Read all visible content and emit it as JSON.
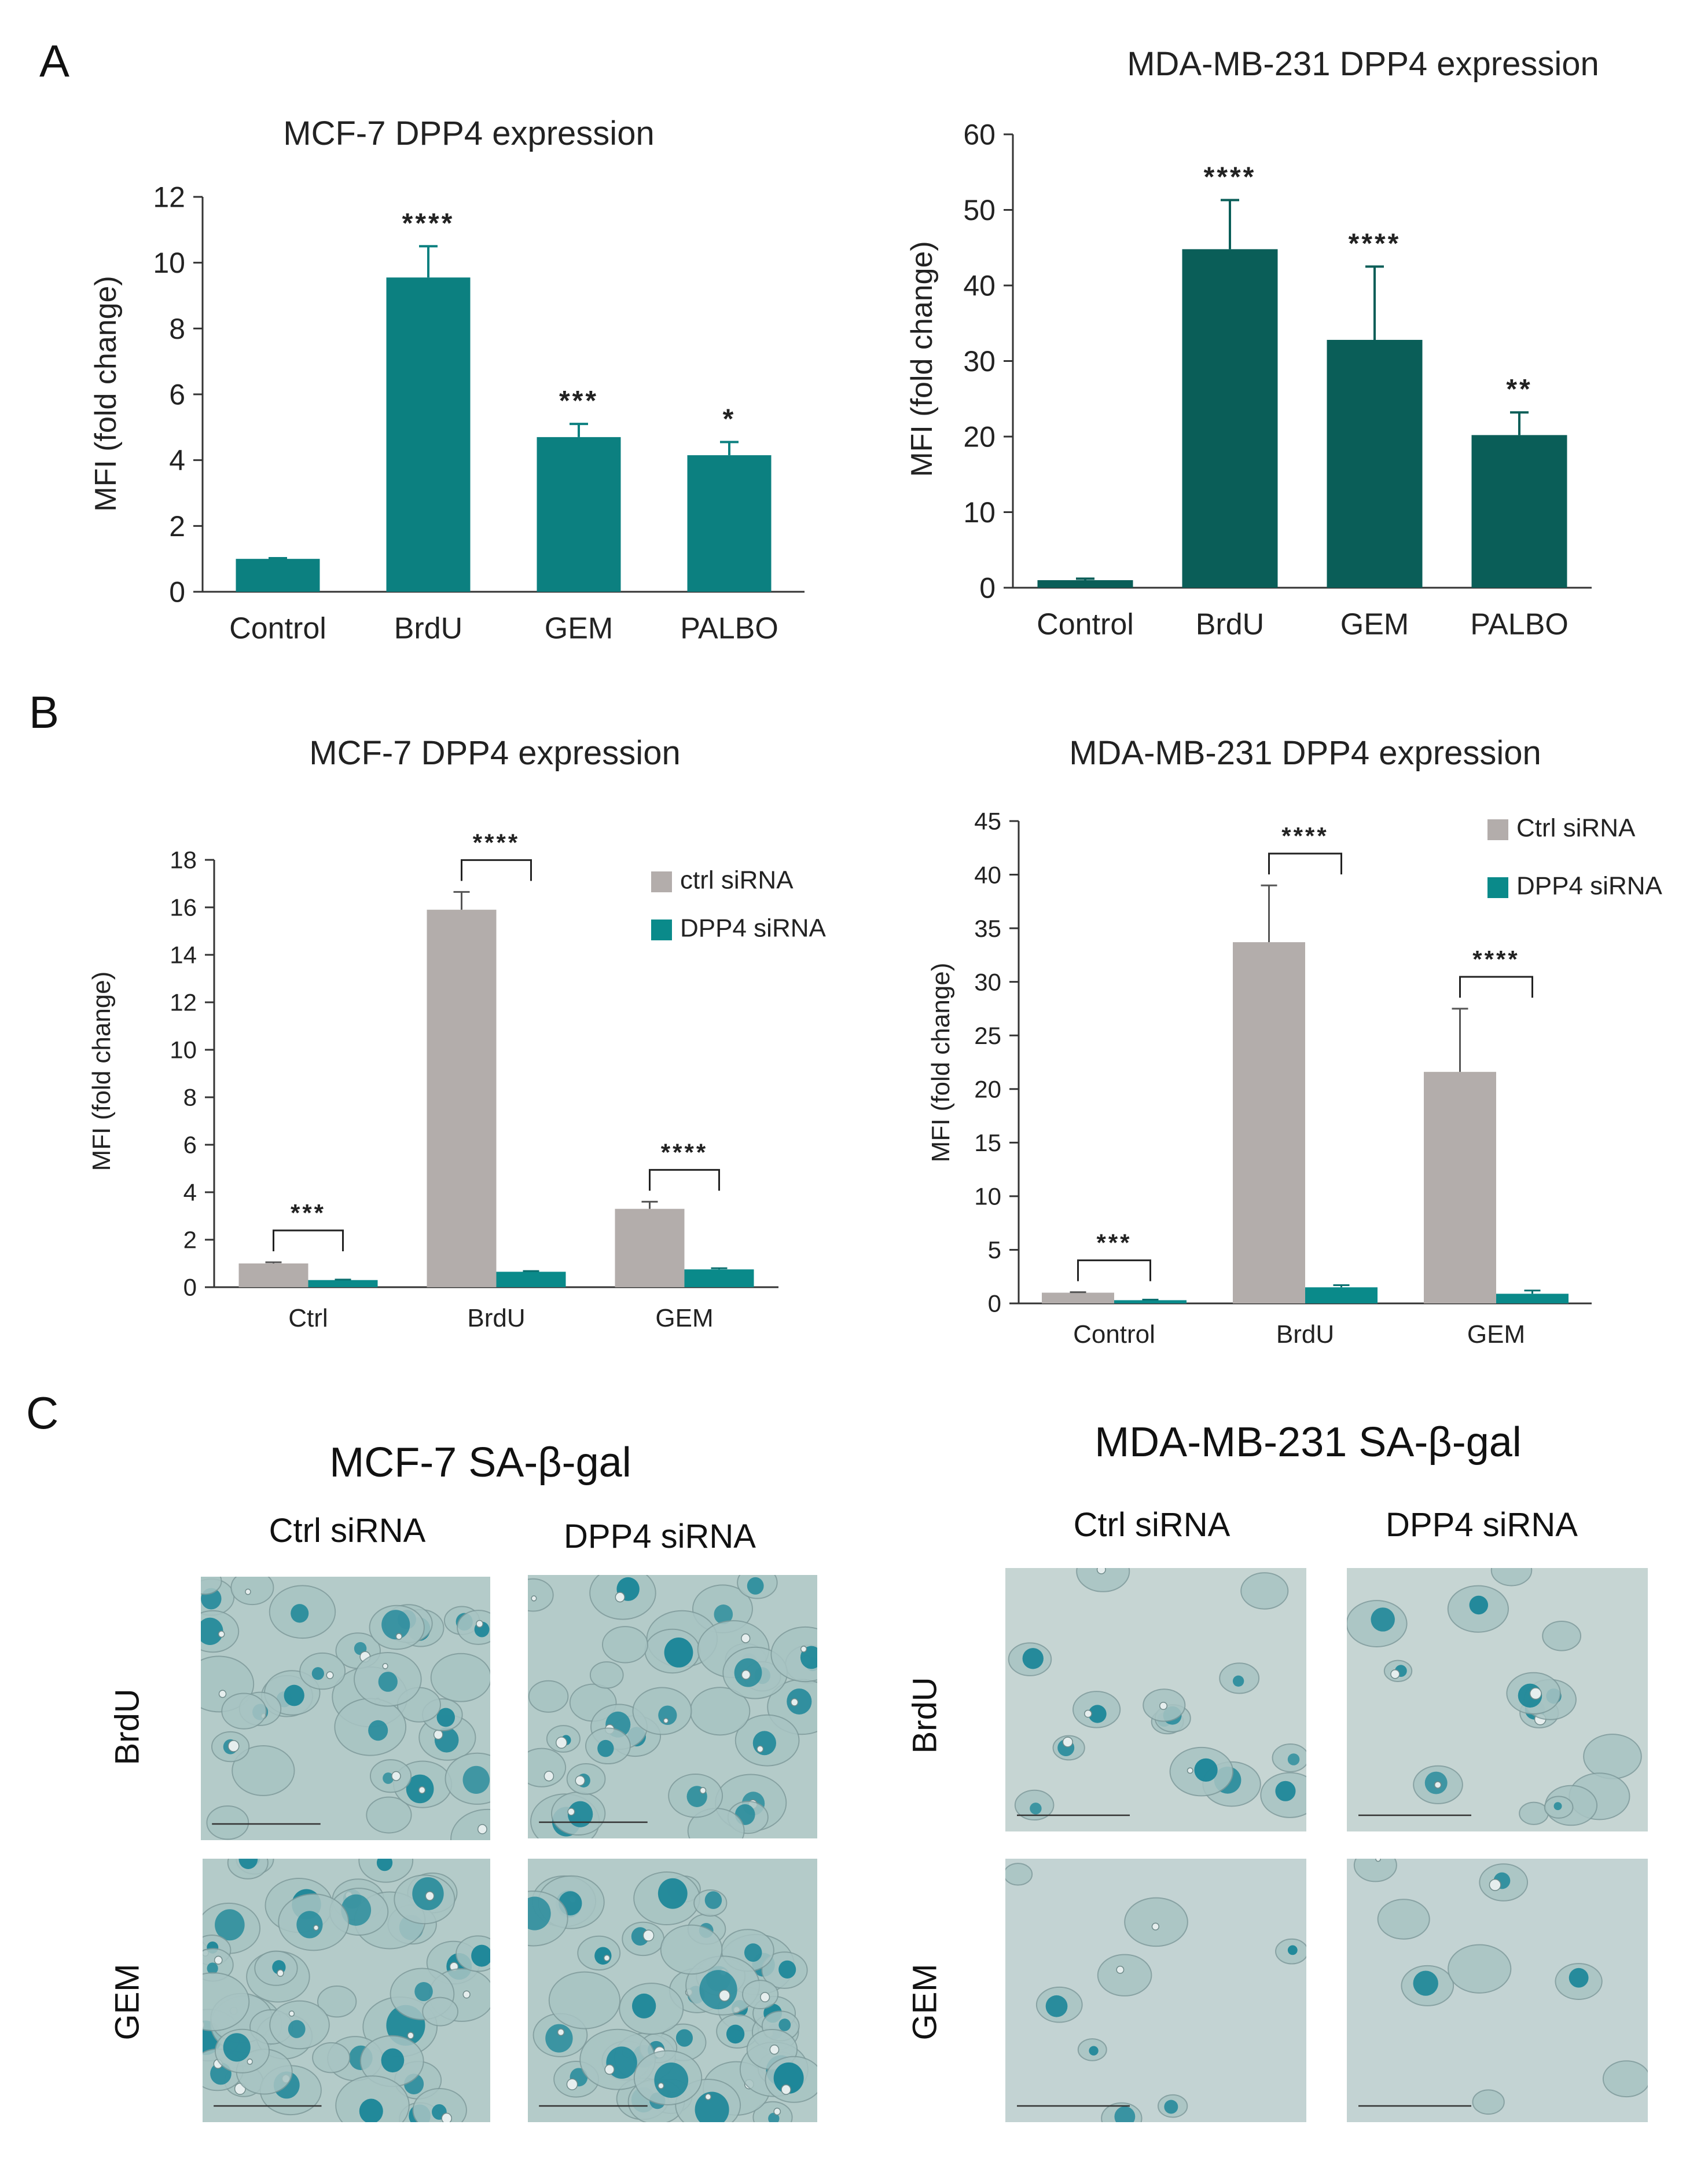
{
  "panels": {
    "a": "A",
    "b": "B",
    "c": "C"
  },
  "chart_data": [
    {
      "id": "A1",
      "type": "bar",
      "title": "MCF-7 DPP4 expression",
      "xlabel": "",
      "ylabel": "MFI (fold change)",
      "categories": [
        "Control",
        "BrdU",
        "GEM",
        "PALBO"
      ],
      "values": [
        1.0,
        9.55,
        4.7,
        4.15
      ],
      "errors": [
        0.02,
        0.95,
        0.4,
        0.4
      ],
      "significance": [
        "",
        "****",
        "***",
        "*"
      ],
      "ylim": [
        0,
        12
      ],
      "yticks": [
        0,
        2,
        4,
        6,
        8,
        10,
        12
      ],
      "color": "#0c8080"
    },
    {
      "id": "A2",
      "type": "bar",
      "title": "MDA-MB-231 DPP4 expression",
      "xlabel": "",
      "ylabel": "MFI  (fold change)",
      "categories": [
        "Control",
        "BrdU",
        "GEM",
        "PALBO"
      ],
      "values": [
        1.0,
        44.8,
        32.8,
        20.2
      ],
      "errors": [
        0.2,
        6.5,
        9.7,
        3.0
      ],
      "significance": [
        "",
        "****",
        "****",
        "**"
      ],
      "ylim": [
        0,
        60
      ],
      "yticks": [
        0,
        10,
        20,
        30,
        40,
        50,
        60
      ],
      "color": "#0a5e58"
    },
    {
      "id": "B1",
      "type": "bar",
      "title": "MCF-7 DPP4 expression",
      "xlabel": "",
      "ylabel": "MFI (fold change)",
      "categories": [
        "Ctrl",
        "BrdU",
        "GEM"
      ],
      "series": [
        {
          "name": "ctrl siRNA",
          "values": [
            1.0,
            15.9,
            3.3
          ],
          "errors": [
            0.05,
            0.75,
            0.3
          ],
          "color": "#b3adab"
        },
        {
          "name": "DPP4 siRNA",
          "values": [
            0.3,
            0.65,
            0.75
          ],
          "errors": [
            0.02,
            0.03,
            0.05
          ],
          "color": "#0a8a8a"
        }
      ],
      "significance": [
        "***",
        "****",
        "****"
      ],
      "ylim": [
        0,
        18
      ],
      "yticks": [
        0,
        2,
        4,
        6,
        8,
        10,
        12,
        14,
        16,
        18
      ]
    },
    {
      "id": "B2",
      "type": "bar",
      "title": "MDA-MB-231 DPP4 expression",
      "xlabel": "",
      "ylabel": "MFI (fold change)",
      "categories": [
        "Control",
        "BrdU",
        "GEM"
      ],
      "series": [
        {
          "name": "Ctrl siRNA",
          "values": [
            1.0,
            33.7,
            21.6
          ],
          "errors": [
            0.05,
            5.3,
            5.9
          ],
          "color": "#b3adab"
        },
        {
          "name": "DPP4 siRNA",
          "values": [
            0.3,
            1.5,
            0.9
          ],
          "errors": [
            0.05,
            0.2,
            0.3
          ],
          "color": "#0a8a8a"
        }
      ],
      "significance": [
        "***",
        "****",
        "****"
      ],
      "ylim": [
        0,
        45
      ],
      "yticks": [
        0,
        5,
        10,
        15,
        20,
        25,
        30,
        35,
        40,
        45
      ]
    }
  ],
  "micrographs": {
    "left": {
      "title": "MCF-7 SA-β-gal",
      "columns": [
        "Ctrl siRNA",
        "DPP4 siRNA"
      ],
      "rows": [
        "BrdU",
        "GEM"
      ]
    },
    "right": {
      "title": "MDA-MB-231 SA-β-gal",
      "columns": [
        "Ctrl siRNA",
        "DPP4 siRNA"
      ],
      "rows": [
        "BrdU",
        "GEM"
      ]
    }
  },
  "colors": {
    "teal": "#0c8080",
    "dark_teal": "#0a5e58",
    "gray": "#b3adab",
    "stain": "#1f8a9a",
    "bg_stain": "#b9cfcd"
  }
}
